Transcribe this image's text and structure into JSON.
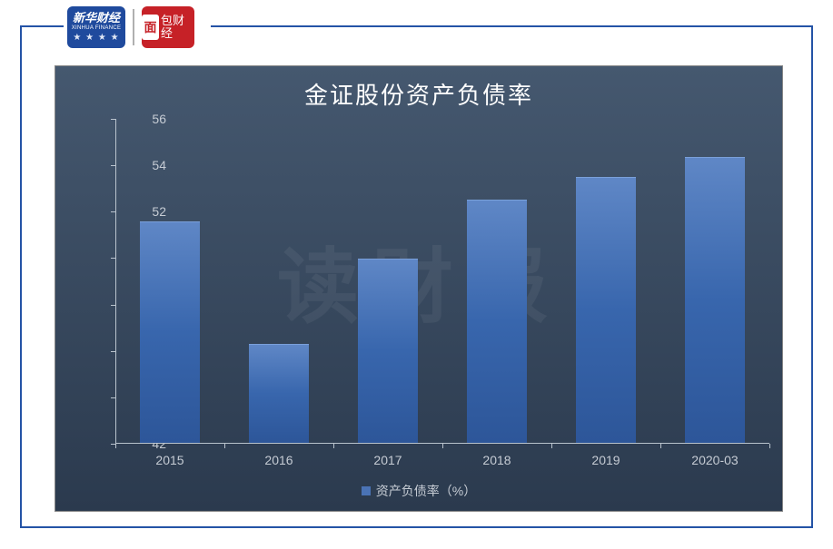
{
  "logos": {
    "xinhua_cn": "新华财经",
    "xinhua_en": "XINHUA FINANCE",
    "mianbao_badge": "面",
    "mianbao_text": "包财经"
  },
  "chart": {
    "type": "bar",
    "title": "金证股份资产负债率",
    "title_fontsize": 26,
    "title_color": "#ffffff",
    "watermark": "读财报",
    "background_gradient": [
      "#45586f",
      "#2b3a4e"
    ],
    "axis_color": "#b9c3cd",
    "tick_label_color": "#c6ccd4",
    "tick_fontsize": 14,
    "ylim": [
      42,
      56
    ],
    "ytick_step": 2,
    "yticks": [
      42,
      44,
      46,
      48,
      50,
      52,
      54,
      56
    ],
    "categories": [
      "2015",
      "2016",
      "2017",
      "2018",
      "2019",
      "2020-03"
    ],
    "values": [
      51.55,
      46.25,
      49.95,
      52.5,
      53.45,
      54.3
    ],
    "bar_color": "#3866ad",
    "bar_gradient": [
      "#5f87c6",
      "#3866ad",
      "#2d5699"
    ],
    "bar_width_ratio": 0.55,
    "legend": {
      "label": "资产负债率（%）",
      "swatch_color": "#4a73b5"
    }
  }
}
